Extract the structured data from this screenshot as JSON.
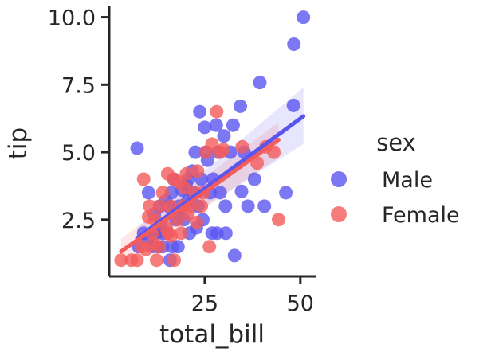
{
  "chart_data": {
    "type": "scatter",
    "title": "",
    "xlabel": "total_bill",
    "ylabel": "tip",
    "xlim": [
      0,
      54
    ],
    "ylim": [
      0.4,
      10.4
    ],
    "xticks": [
      25,
      50
    ],
    "yticks": [
      2.5,
      5.0,
      7.5,
      10.0
    ],
    "xtick_labels": [
      "25",
      "50"
    ],
    "ytick_labels": [
      "2.5",
      "5.0",
      "7.5",
      "10.0"
    ],
    "grid": false,
    "legend_title": "sex",
    "legend_position": "right",
    "series": [
      {
        "name": "Male",
        "color": "#5b55f0",
        "points": [
          [
            50.8,
            10.0
          ],
          [
            48.3,
            9.0
          ],
          [
            39.4,
            7.58
          ],
          [
            34.3,
            6.7
          ],
          [
            48.2,
            6.73
          ],
          [
            23.7,
            6.5
          ],
          [
            28.0,
            6.0
          ],
          [
            32.4,
            6.0
          ],
          [
            25.0,
            5.92
          ],
          [
            30.0,
            5.6
          ],
          [
            7.3,
            5.15
          ],
          [
            22.5,
            5.0
          ],
          [
            25.3,
            5.0
          ],
          [
            28.5,
            5.0
          ],
          [
            35.3,
            5.0
          ],
          [
            31.7,
            5.0
          ],
          [
            24.1,
            4.0
          ],
          [
            20.7,
            4.0
          ],
          [
            38.0,
            4.0
          ],
          [
            16.3,
            3.5
          ],
          [
            20.1,
            3.8
          ],
          [
            22.0,
            3.5
          ],
          [
            26.4,
            3.5
          ],
          [
            34.6,
            3.55
          ],
          [
            46.2,
            3.5
          ],
          [
            10.3,
            3.5
          ],
          [
            13.2,
            3.0
          ],
          [
            15.5,
            3.0
          ],
          [
            18.3,
            3.0
          ],
          [
            23.2,
            3.0
          ],
          [
            30.4,
            3.0
          ],
          [
            29.0,
            3.5
          ],
          [
            36.3,
            3.0
          ],
          [
            40.6,
            3.0
          ],
          [
            17.5,
            2.5
          ],
          [
            19.5,
            2.5
          ],
          [
            15.0,
            2.0
          ],
          [
            12.4,
            2.0
          ],
          [
            9.0,
            2.0
          ],
          [
            13.9,
            2.0
          ],
          [
            21.0,
            2.0
          ],
          [
            28.2,
            2.0
          ],
          [
            30.5,
            2.0
          ],
          [
            26.9,
            2.0
          ],
          [
            11.4,
            1.5
          ],
          [
            14.0,
            1.5
          ],
          [
            16.5,
            1.5
          ],
          [
            18.0,
            1.5
          ],
          [
            10.1,
            1.8
          ],
          [
            12.8,
            1.5
          ],
          [
            15.9,
            1.0
          ],
          [
            22.8,
            2.2
          ],
          [
            32.8,
            1.17
          ],
          [
            7.7,
            1.5
          ],
          [
            20.5,
            3.2
          ],
          [
            17.8,
            2.8
          ],
          [
            24.5,
            2.5
          ],
          [
            14.8,
            3.2
          ],
          [
            11.8,
            2.7
          ],
          [
            19.0,
            3.6
          ],
          [
            21.7,
            4.3
          ],
          [
            27.2,
            4.0
          ],
          [
            25.7,
            4.7
          ],
          [
            16.9,
            4.0
          ],
          [
            13.4,
            2.3
          ]
        ]
      },
      {
        "name": "Female",
        "color": "#f45b5b",
        "points": [
          [
            43.1,
            5.0
          ],
          [
            41.0,
            5.2
          ],
          [
            29.9,
            5.1
          ],
          [
            26.9,
            5.3
          ],
          [
            29.0,
            5.0
          ],
          [
            28.1,
            6.5
          ],
          [
            34.8,
            5.2
          ],
          [
            25.3,
            5.0
          ],
          [
            38.7,
            4.6
          ],
          [
            23.1,
            4.3
          ],
          [
            16.8,
            4.0
          ],
          [
            15.3,
            4.2
          ],
          [
            18.2,
            3.9
          ],
          [
            20.2,
            4.2
          ],
          [
            22.4,
            3.5
          ],
          [
            14.0,
            3.5
          ],
          [
            10.6,
            3.0
          ],
          [
            13.3,
            3.0
          ],
          [
            9.0,
            4.0
          ],
          [
            19.4,
            3.0
          ],
          [
            24.6,
            3.5
          ],
          [
            21.0,
            3.0
          ],
          [
            16.0,
            3.0
          ],
          [
            12.0,
            2.5
          ],
          [
            15.4,
            2.0
          ],
          [
            17.9,
            2.5
          ],
          [
            11.2,
            2.0
          ],
          [
            14.9,
            2.2
          ],
          [
            10.3,
            2.6
          ],
          [
            8.5,
            1.5
          ],
          [
            13.0,
            1.5
          ],
          [
            17.0,
            1.0
          ],
          [
            12.4,
            1.0
          ],
          [
            7.3,
            1.0
          ],
          [
            3.1,
            1.0
          ],
          [
            5.8,
            1.0
          ],
          [
            26.2,
            1.5
          ],
          [
            44.3,
            2.5
          ],
          [
            18.8,
            2.0
          ],
          [
            22.9,
            2.4
          ],
          [
            20.6,
            2.7
          ],
          [
            16.2,
            1.9
          ],
          [
            11.7,
            1.6
          ],
          [
            9.6,
            1.4
          ],
          [
            19.6,
            3.7
          ],
          [
            24.1,
            3.0
          ]
        ]
      }
    ],
    "fits": [
      {
        "series": "Male",
        "x": [
          7.3,
          50.8
        ],
        "y": [
          1.82,
          6.33
        ],
        "ci_lower": [
          1.4,
          5.3
        ],
        "ci_upper": [
          2.2,
          7.4
        ]
      },
      {
        "series": "Female",
        "x": [
          3.1,
          44.3
        ],
        "y": [
          1.32,
          5.46
        ],
        "ci_lower": [
          0.8,
          4.8
        ],
        "ci_upper": [
          1.8,
          6.1
        ]
      }
    ]
  }
}
